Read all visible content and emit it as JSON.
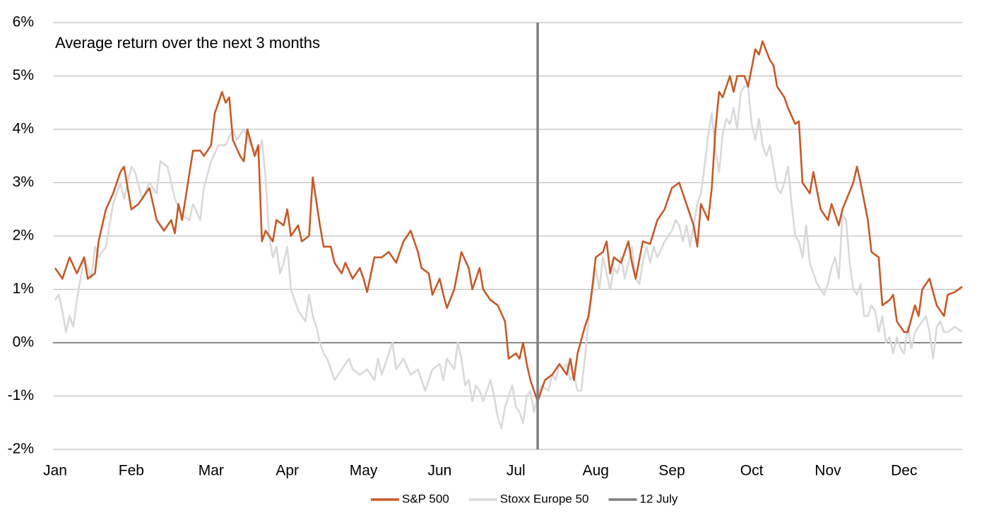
{
  "chart_data": {
    "type": "line",
    "annotation": "Average return over the next 3 months",
    "xlim": [
      0,
      250
    ],
    "xticks": [
      {
        "value": 0,
        "label": "Jan"
      },
      {
        "value": 21,
        "label": "Feb"
      },
      {
        "value": 43,
        "label": "Mar"
      },
      {
        "value": 64,
        "label": "Apr"
      },
      {
        "value": 85,
        "label": "May"
      },
      {
        "value": 106,
        "label": "Jun"
      },
      {
        "value": 127,
        "label": "Jul"
      },
      {
        "value": 149,
        "label": "Aug"
      },
      {
        "value": 170,
        "label": "Sep"
      },
      {
        "value": 192,
        "label": "Oct"
      },
      {
        "value": 213,
        "label": "Nov"
      },
      {
        "value": 234,
        "label": "Dec"
      }
    ],
    "ylim": [
      -2,
      6
    ],
    "yticks": [
      {
        "value": -2,
        "label": "-2%"
      },
      {
        "value": -1,
        "label": "-1%"
      },
      {
        "value": 0,
        "label": "0%"
      },
      {
        "value": 1,
        "label": "1%"
      },
      {
        "value": 2,
        "label": "2%"
      },
      {
        "value": 3,
        "label": "3%"
      },
      {
        "value": 4,
        "label": "4%"
      },
      {
        "value": 5,
        "label": "5%"
      },
      {
        "value": 6,
        "label": "6%"
      }
    ],
    "grid": true,
    "series": [
      {
        "name": "S&P 500",
        "color": "#c55a28",
        "x": [
          0,
          2,
          4,
          6,
          8,
          9,
          11,
          12,
          14,
          16,
          18,
          19,
          21,
          23,
          25,
          26,
          28,
          30,
          32,
          33,
          34,
          35,
          38,
          40,
          41,
          43,
          44,
          46,
          47,
          48,
          49,
          51,
          52,
          53,
          55,
          56,
          57,
          58,
          60,
          61,
          63,
          64,
          65,
          67,
          68,
          70,
          71,
          73,
          74,
          76,
          77,
          79,
          80,
          82,
          84,
          85,
          86,
          88,
          90,
          92,
          94,
          96,
          98,
          100,
          101,
          103,
          104,
          106,
          107,
          108,
          110,
          112,
          114,
          115,
          117,
          118,
          120,
          122,
          124,
          125,
          127,
          128,
          129,
          130,
          131,
          133,
          135,
          137,
          139,
          141,
          142,
          143,
          144,
          146,
          147,
          148,
          149,
          151,
          152,
          153,
          154,
          156,
          158,
          159,
          160,
          162,
          164,
          166,
          168,
          170,
          172,
          174,
          176,
          177,
          178,
          180,
          181,
          182,
          183,
          184,
          186,
          187,
          188,
          190,
          191,
          193,
          194,
          195,
          197,
          198,
          199,
          201,
          202,
          204,
          205,
          206,
          208,
          209,
          211,
          213,
          214,
          216,
          217,
          220,
          221,
          222,
          224,
          225,
          227,
          228,
          230,
          231,
          232,
          234,
          235,
          237,
          238,
          239,
          241,
          243,
          245,
          246,
          248,
          250
        ],
        "values": [
          1.4,
          1.2,
          1.6,
          1.3,
          1.6,
          1.2,
          1.3,
          1.9,
          2.5,
          2.8,
          3.2,
          3.3,
          2.5,
          2.6,
          2.8,
          2.9,
          2.3,
          2.1,
          2.3,
          2.05,
          2.6,
          2.3,
          3.6,
          3.6,
          3.5,
          3.7,
          4.3,
          4.7,
          4.5,
          4.6,
          3.8,
          3.5,
          3.4,
          4.0,
          3.5,
          3.7,
          1.9,
          2.1,
          1.9,
          2.3,
          2.2,
          2.5,
          2.0,
          2.2,
          1.9,
          2.0,
          3.1,
          2.2,
          1.8,
          1.8,
          1.5,
          1.3,
          1.5,
          1.2,
          1.4,
          1.2,
          0.95,
          1.6,
          1.6,
          1.7,
          1.5,
          1.9,
          2.1,
          1.7,
          1.4,
          1.3,
          0.9,
          1.2,
          0.9,
          0.65,
          1.0,
          1.7,
          1.4,
          1.0,
          1.4,
          1.0,
          0.8,
          0.7,
          0.4,
          -0.3,
          -0.2,
          -0.3,
          0.0,
          -0.4,
          -0.7,
          -1.1,
          -0.7,
          -0.6,
          -0.4,
          -0.6,
          -0.3,
          -0.7,
          -0.2,
          0.3,
          0.5,
          1.0,
          1.6,
          1.7,
          1.9,
          1.3,
          1.6,
          1.5,
          1.9,
          1.5,
          1.2,
          1.9,
          1.85,
          2.3,
          2.5,
          2.9,
          3.0,
          2.6,
          2.2,
          1.8,
          2.6,
          2.3,
          2.9,
          4.0,
          4.7,
          4.6,
          5.0,
          4.7,
          5.0,
          5.0,
          4.8,
          5.5,
          5.4,
          5.65,
          5.3,
          5.2,
          4.8,
          4.6,
          4.4,
          4.1,
          4.15,
          3.0,
          2.8,
          3.2,
          2.5,
          2.3,
          2.6,
          2.2,
          2.5,
          3.0,
          3.3,
          3.0,
          2.3,
          1.7,
          1.6,
          0.7,
          0.8,
          0.9,
          0.4,
          0.2,
          0.2,
          0.7,
          0.5,
          1.0,
          1.2,
          0.7,
          0.5,
          0.9,
          0.95,
          1.05
        ]
      },
      {
        "name": "Stoxx Europe 50",
        "color": "#d9d9d9",
        "x": [
          0,
          1,
          2,
          3,
          4,
          5,
          6,
          7,
          8,
          10,
          11,
          12,
          14,
          16,
          18,
          19,
          21,
          22,
          24,
          26,
          28,
          29,
          31,
          33,
          35,
          37,
          38,
          40,
          41,
          43,
          45,
          47,
          49,
          50,
          52,
          54,
          56,
          57,
          58,
          59,
          60,
          61,
          62,
          63,
          64,
          65,
          66,
          67,
          68,
          69,
          70,
          71,
          72,
          73,
          74,
          75,
          76,
          77,
          78,
          80,
          81,
          82,
          84,
          86,
          88,
          89,
          90,
          92,
          93,
          94,
          96,
          98,
          100,
          102,
          104,
          106,
          107,
          108,
          110,
          111,
          112,
          113,
          114,
          115,
          116,
          117,
          118,
          119,
          120,
          121,
          122,
          123,
          124,
          125,
          126,
          127,
          128,
          129,
          130,
          131,
          132,
          133,
          134,
          136,
          137,
          138,
          139,
          140,
          141,
          142,
          143,
          144,
          145,
          146,
          147,
          148,
          149,
          150,
          151,
          152,
          153,
          154,
          155,
          156,
          157,
          158,
          159,
          160,
          161,
          162,
          163,
          164,
          165,
          166,
          168,
          169,
          170,
          171,
          172,
          173,
          174,
          175,
          176,
          177,
          178,
          179,
          180,
          181,
          182,
          183,
          184,
          185,
          186,
          187,
          188,
          189,
          190,
          191,
          192,
          193,
          194,
          195,
          196,
          197,
          198,
          199,
          200,
          201,
          202,
          203,
          204,
          205,
          206,
          207,
          208,
          209,
          210,
          211,
          212,
          213,
          214,
          215,
          216,
          217,
          218,
          219,
          220,
          221,
          222,
          223,
          224,
          225,
          226,
          227,
          228,
          229,
          230,
          231,
          232,
          233,
          234,
          235,
          236,
          237,
          238,
          239,
          240,
          241,
          242,
          243,
          244,
          245,
          246,
          248,
          250
        ],
        "values": [
          0.8,
          0.9,
          0.6,
          0.2,
          0.5,
          0.3,
          0.8,
          1.2,
          1.6,
          1.2,
          1.8,
          1.6,
          1.8,
          2.6,
          3.0,
          2.7,
          3.3,
          3.2,
          2.7,
          3.0,
          2.8,
          3.4,
          3.3,
          2.7,
          2.4,
          2.3,
          2.6,
          2.3,
          2.9,
          3.4,
          3.7,
          3.7,
          4.0,
          3.8,
          4.0,
          3.7,
          3.5,
          3.8,
          3.1,
          2.0,
          1.6,
          1.8,
          1.3,
          1.5,
          1.8,
          1.0,
          0.8,
          0.6,
          0.5,
          0.4,
          0.9,
          0.5,
          0.3,
          0.0,
          -0.2,
          -0.3,
          -0.5,
          -0.7,
          -0.6,
          -0.4,
          -0.3,
          -0.5,
          -0.6,
          -0.5,
          -0.7,
          -0.3,
          -0.6,
          -0.2,
          0.0,
          -0.5,
          -0.3,
          -0.6,
          -0.5,
          -0.9,
          -0.5,
          -0.4,
          -0.7,
          -0.3,
          -0.5,
          0.0,
          -0.3,
          -0.8,
          -0.7,
          -1.1,
          -0.8,
          -0.9,
          -1.1,
          -0.9,
          -0.7,
          -1.0,
          -1.4,
          -1.6,
          -1.2,
          -1.0,
          -0.8,
          -1.2,
          -1.3,
          -1.5,
          -1.0,
          -0.9,
          -1.3,
          -1.0,
          -0.8,
          -0.9,
          -0.6,
          -0.7,
          -0.4,
          -0.5,
          -0.4,
          -0.7,
          -0.6,
          -0.9,
          -0.9,
          -0.3,
          0.4,
          0.9,
          1.4,
          1.0,
          1.6,
          1.3,
          1.0,
          1.4,
          1.3,
          1.6,
          1.2,
          1.5,
          1.8,
          1.2,
          1.1,
          1.5,
          1.8,
          1.5,
          1.8,
          1.6,
          1.9,
          2.0,
          2.1,
          2.3,
          2.2,
          1.9,
          2.2,
          1.8,
          2.2,
          2.6,
          2.8,
          3.3,
          3.9,
          4.3,
          3.6,
          3.2,
          3.9,
          4.2,
          4.1,
          4.4,
          4.0,
          4.7,
          4.8,
          4.8,
          4.1,
          3.8,
          4.2,
          3.7,
          3.5,
          3.7,
          3.3,
          2.9,
          2.8,
          3.0,
          3.3,
          2.6,
          2.0,
          1.9,
          1.6,
          2.2,
          1.5,
          1.3,
          1.1,
          1.0,
          0.9,
          1.1,
          1.4,
          1.6,
          1.2,
          2.4,
          2.3,
          1.5,
          1.0,
          0.9,
          1.1,
          0.5,
          0.5,
          0.7,
          0.6,
          0.2,
          0.5,
          0.0,
          0.1,
          -0.2,
          0.1,
          -0.1,
          -0.2,
          0.3,
          -0.1,
          0.2,
          0.3,
          0.4,
          0.5,
          0.2,
          -0.3,
          0.3,
          0.4,
          0.2,
          0.2,
          0.3,
          0.2
        ]
      }
    ],
    "vlines": [
      {
        "name": "12 July",
        "color": "#7f7f7f",
        "x": 133
      }
    ]
  }
}
